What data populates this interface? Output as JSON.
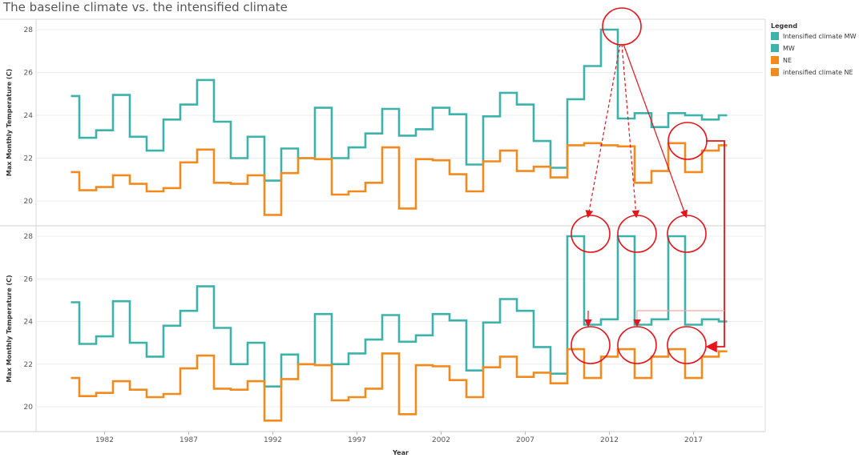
{
  "title": "The baseline climate vs. the intensified climate",
  "legend": {
    "title": "Legend",
    "items": [
      {
        "label": "Intensified climate MW",
        "color": "#3db2aa"
      },
      {
        "label": "MW",
        "color": "#3db2aa"
      },
      {
        "label": "NE",
        "color": "#f28a1e"
      },
      {
        "label": "intensified climate NE",
        "color": "#f28a1e"
      }
    ]
  },
  "colors": {
    "mw": "#3db2aa",
    "ne": "#f28a1e",
    "annotation": "#e8131b"
  },
  "chart_data": [
    {
      "type": "line",
      "step": true,
      "panel": "top",
      "xlabel": "",
      "ylabel": "Max Monthly Temperature (C)",
      "ylim": [
        19,
        28.6
      ],
      "yticks": [
        20,
        22,
        24,
        26,
        28
      ],
      "x": [
        1980,
        1981,
        1982,
        1983,
        1984,
        1985,
        1986,
        1987,
        1988,
        1989,
        1990,
        1991,
        1992,
        1993,
        1994,
        1995,
        1996,
        1997,
        1998,
        1999,
        2000,
        2001,
        2002,
        2003,
        2004,
        2005,
        2006,
        2007,
        2008,
        2009,
        2010,
        2011,
        2012,
        2013,
        2014,
        2015,
        2016,
        2017,
        2018,
        2019
      ],
      "series": [
        {
          "name": "MW",
          "color": "#3db2aa",
          "values": [
            24.9,
            22.95,
            23.3,
            24.95,
            23.0,
            22.35,
            23.8,
            24.5,
            25.65,
            23.7,
            22.0,
            23.0,
            20.95,
            22.45,
            22.0,
            24.35,
            22.0,
            22.5,
            23.15,
            24.3,
            23.05,
            23.35,
            24.35,
            24.05,
            21.7,
            23.95,
            25.05,
            24.5,
            22.8,
            21.55,
            24.75,
            26.3,
            28.0,
            23.85,
            24.1,
            23.45,
            24.1,
            24.0,
            23.8,
            24.0
          ]
        },
        {
          "name": "NE",
          "color": "#f28a1e",
          "values": [
            21.35,
            20.5,
            20.65,
            21.2,
            20.8,
            20.45,
            20.6,
            21.8,
            22.4,
            20.85,
            20.8,
            21.2,
            19.35,
            21.3,
            22.0,
            21.95,
            20.3,
            20.45,
            20.85,
            22.5,
            19.65,
            21.95,
            21.9,
            21.25,
            20.45,
            21.85,
            22.35,
            21.4,
            21.6,
            21.1,
            22.6,
            22.7,
            22.6,
            22.55,
            20.85,
            21.4,
            22.7,
            21.35,
            22.35,
            22.6
          ]
        }
      ]
    },
    {
      "type": "line",
      "step": true,
      "panel": "bottom",
      "xlabel": "Year",
      "ylabel": "Max Monthly Temperature (C)",
      "ylim": [
        19,
        28.6
      ],
      "yticks": [
        20,
        22,
        24,
        26,
        28
      ],
      "xticks": [
        1982,
        1987,
        1992,
        1997,
        2002,
        2007,
        2012,
        2017
      ],
      "x": [
        1980,
        1981,
        1982,
        1983,
        1984,
        1985,
        1986,
        1987,
        1988,
        1989,
        1990,
        1991,
        1992,
        1993,
        1994,
        1995,
        1996,
        1997,
        1998,
        1999,
        2000,
        2001,
        2002,
        2003,
        2004,
        2005,
        2006,
        2007,
        2008,
        2009,
        2010,
        2011,
        2012,
        2013,
        2014,
        2015,
        2016,
        2017,
        2018,
        2019
      ],
      "series": [
        {
          "name": "Intensified climate MW",
          "color": "#3db2aa",
          "values": [
            24.9,
            22.95,
            23.3,
            24.95,
            23.0,
            22.35,
            23.8,
            24.5,
            25.65,
            23.7,
            22.0,
            23.0,
            20.95,
            22.45,
            22.0,
            24.35,
            22.0,
            22.5,
            23.15,
            24.3,
            23.05,
            23.35,
            24.35,
            24.05,
            21.7,
            23.95,
            25.05,
            24.5,
            22.8,
            21.55,
            28.0,
            23.85,
            24.1,
            28.0,
            23.85,
            24.1,
            28.0,
            23.85,
            24.1,
            24.0
          ]
        },
        {
          "name": "intensified climate NE",
          "color": "#f28a1e",
          "values": [
            21.35,
            20.5,
            20.65,
            21.2,
            20.8,
            20.45,
            20.6,
            21.8,
            22.4,
            20.85,
            20.8,
            21.2,
            19.35,
            21.3,
            22.0,
            21.95,
            20.3,
            20.45,
            20.85,
            22.5,
            19.65,
            21.95,
            21.9,
            21.25,
            20.45,
            21.85,
            22.35,
            21.4,
            21.6,
            21.1,
            22.7,
            21.35,
            22.35,
            22.7,
            21.35,
            22.35,
            22.7,
            21.35,
            22.35,
            22.6
          ]
        }
      ]
    }
  ]
}
